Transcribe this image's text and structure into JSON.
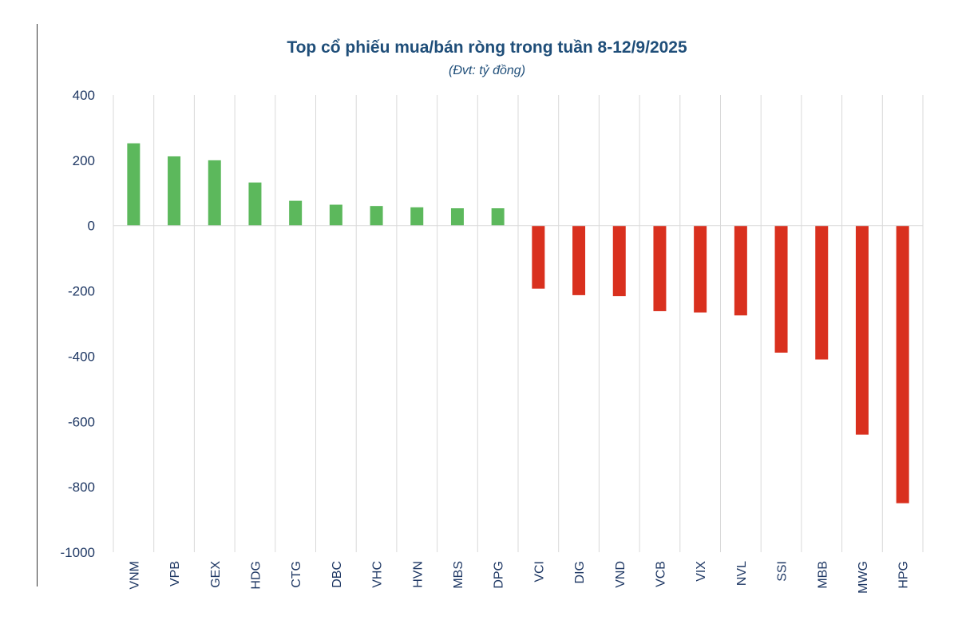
{
  "chart_data": {
    "type": "bar",
    "title": "Top cổ phiếu mua/bán ròng trong tuần 8-12/9/2025",
    "subtitle": "(Đvt: tỷ đồng)",
    "xlabel": "",
    "ylabel": "",
    "ylim": [
      -1000,
      400
    ],
    "yticks": [
      400,
      200,
      0,
      -200,
      -400,
      -600,
      -800,
      -1000
    ],
    "categories": [
      "VNM",
      "VPB",
      "GEX",
      "HDG",
      "CTG",
      "DBC",
      "VHC",
      "HVN",
      "MBS",
      "DPG",
      "VCI",
      "DIG",
      "VND",
      "VCB",
      "VIX",
      "NVL",
      "SSI",
      "MBB",
      "MWG",
      "HPG"
    ],
    "values": [
      252,
      212,
      200,
      132,
      76,
      64,
      60,
      56,
      53,
      53,
      -193,
      -213,
      -216,
      -262,
      -266,
      -275,
      -389,
      -410,
      -640,
      -850
    ],
    "legend": "none",
    "grid": "vertical",
    "colors": {
      "positive": "#5cb85c",
      "negative": "#d9301e",
      "title": "#1f4e79",
      "subtitle": "#1f4e79",
      "tick": "#1f3864",
      "grid": "#d9d9d9"
    }
  }
}
